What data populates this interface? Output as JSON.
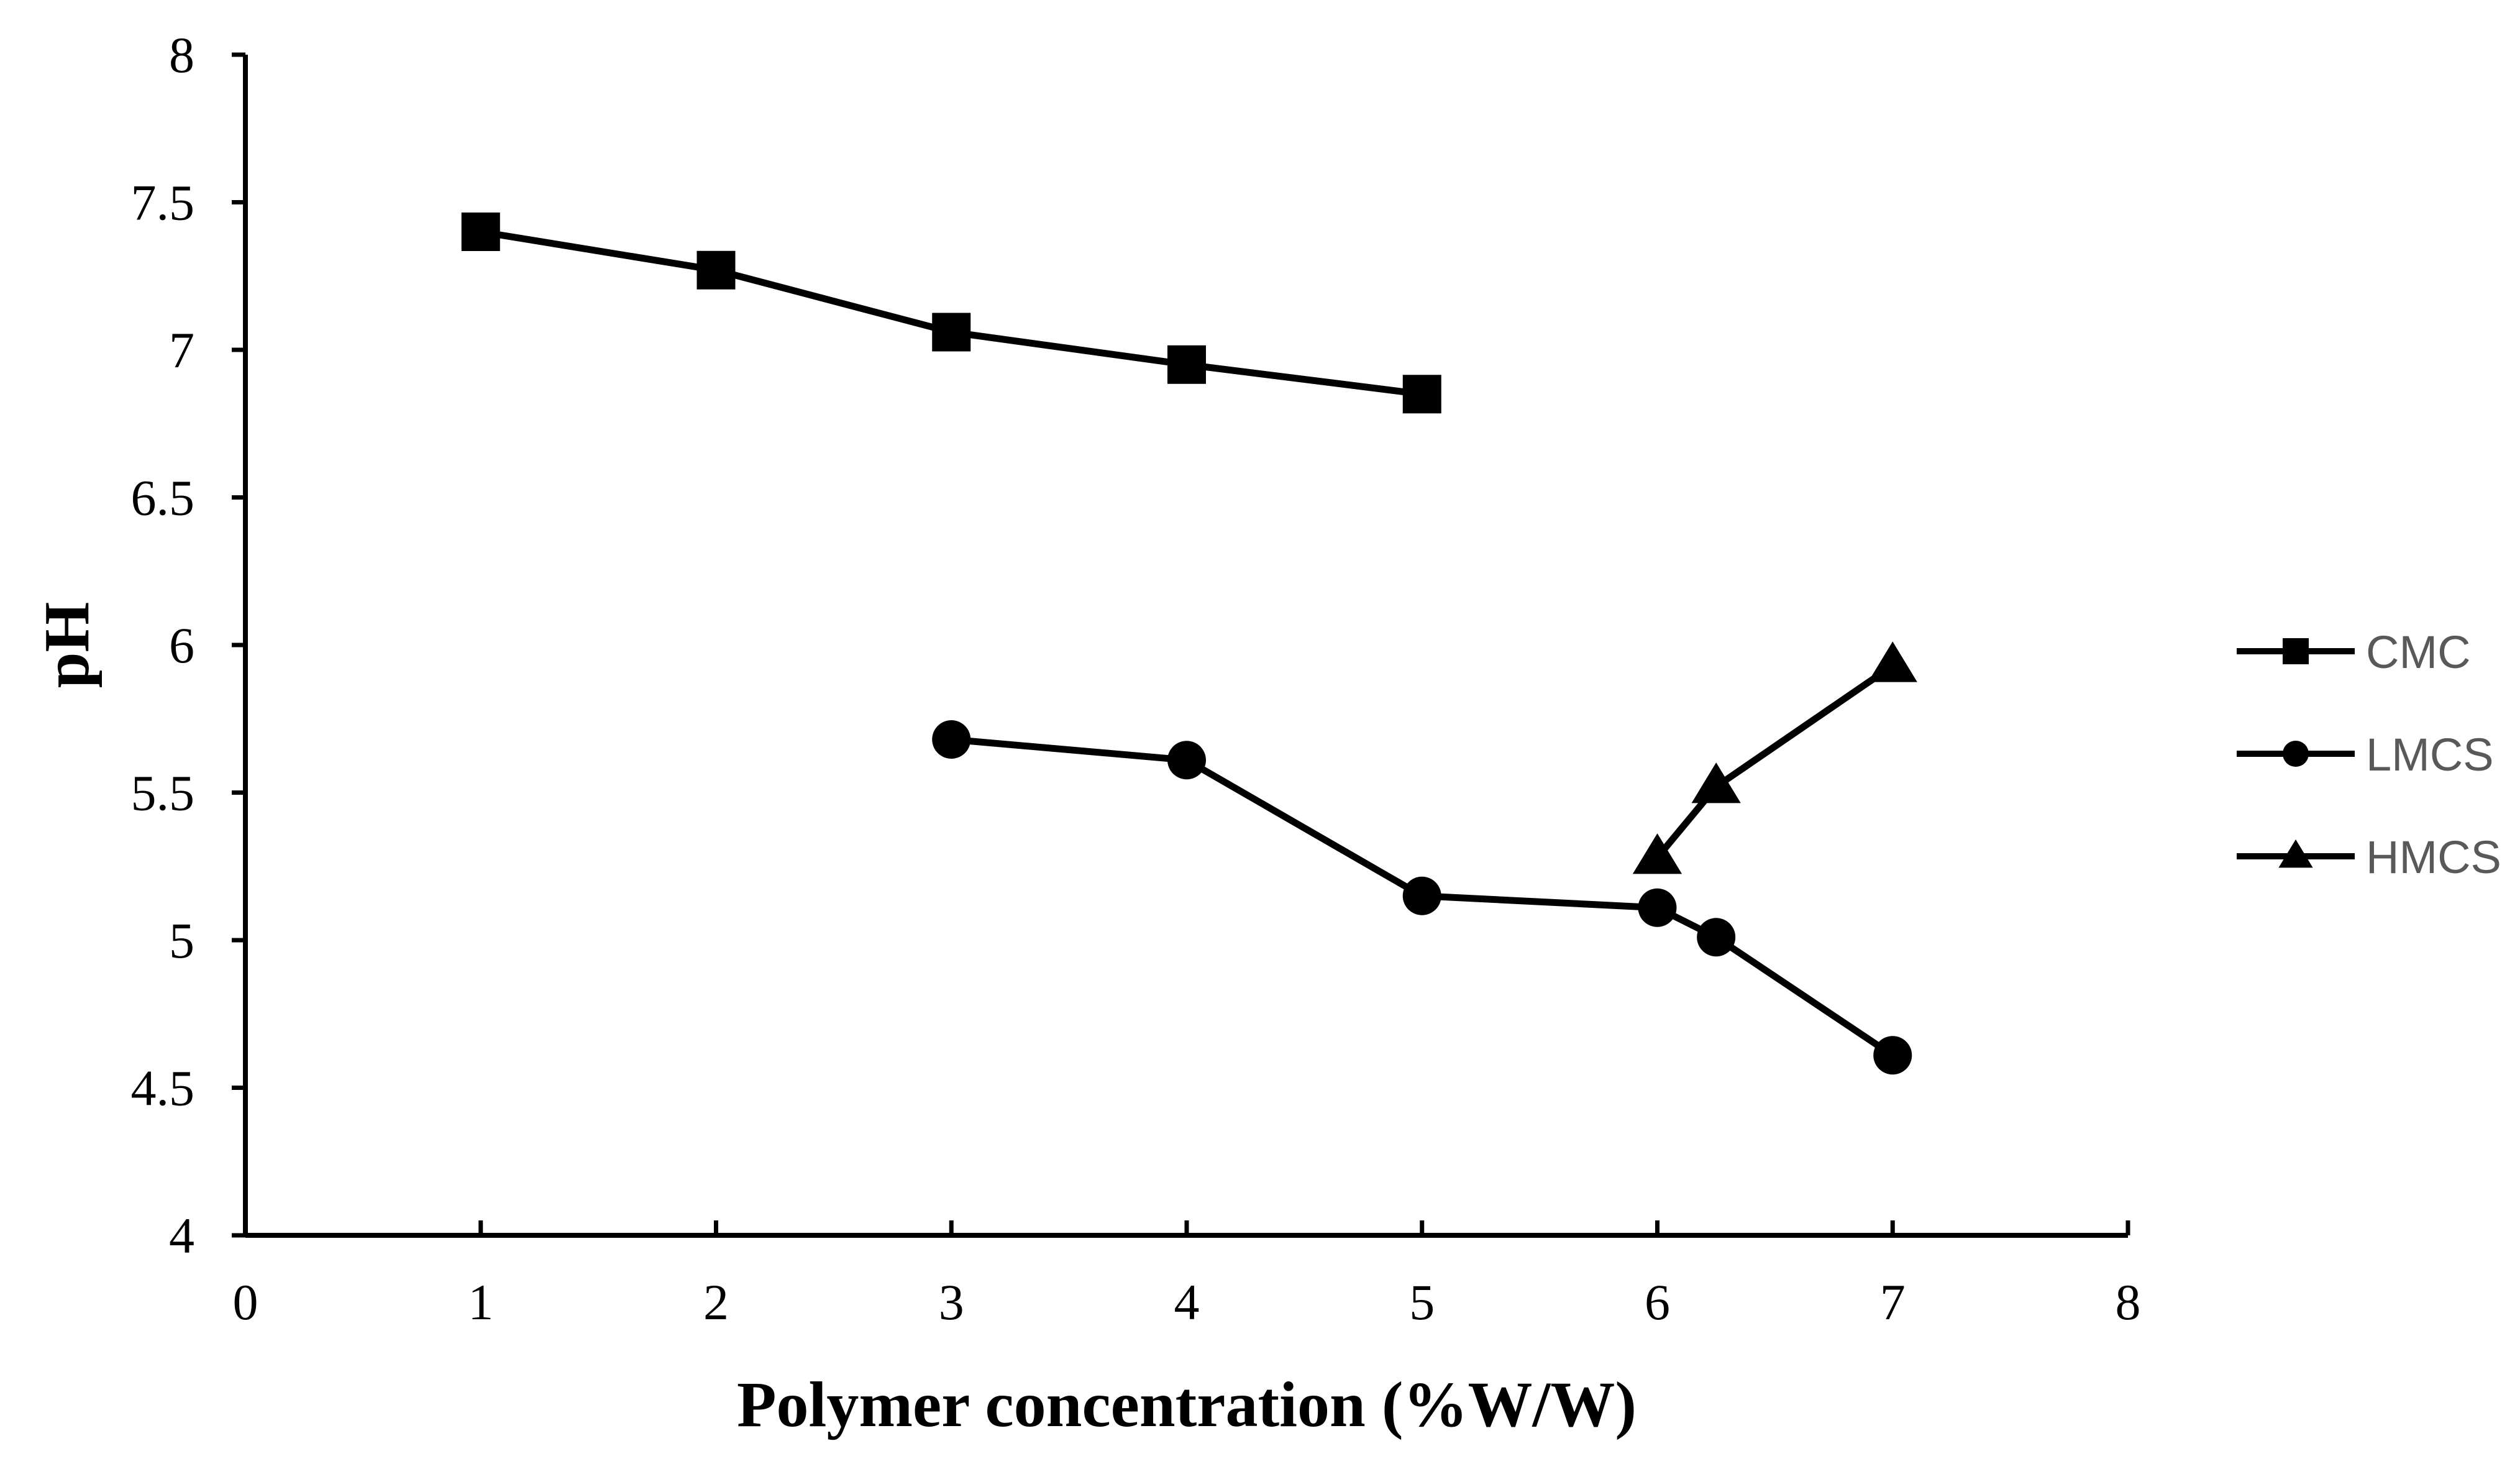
{
  "chart_data": {
    "type": "line",
    "title": "",
    "xlabel": "Polymer concentration (%W/W)",
    "ylabel": "pH",
    "xlim": [
      0,
      8
    ],
    "ylim": [
      4,
      8
    ],
    "x_ticks": [
      "0",
      "1",
      "2",
      "3",
      "4",
      "5",
      "6",
      "7",
      "8"
    ],
    "y_ticks": [
      "4",
      "4.5",
      "5",
      "5.5",
      "6",
      "6.5",
      "7",
      "7.5",
      "8"
    ],
    "grid": false,
    "legend_position": "right",
    "colors": {
      "line": "#000000",
      "legend_text": "#595959"
    },
    "series": [
      {
        "name": "CMC",
        "marker": "square",
        "x": [
          1,
          2,
          3,
          4,
          5
        ],
        "y": [
          7.4,
          7.27,
          7.06,
          6.95,
          6.85
        ]
      },
      {
        "name": "LMCS",
        "marker": "circle",
        "x": [
          3,
          4,
          5,
          6,
          6.25,
          7
        ],
        "y": [
          5.68,
          5.61,
          5.15,
          5.11,
          5.01,
          4.61
        ]
      },
      {
        "name": "HMCS",
        "marker": "triangle",
        "x": [
          6,
          6.25,
          7
        ],
        "y": [
          5.28,
          5.52,
          5.93
        ]
      }
    ]
  }
}
